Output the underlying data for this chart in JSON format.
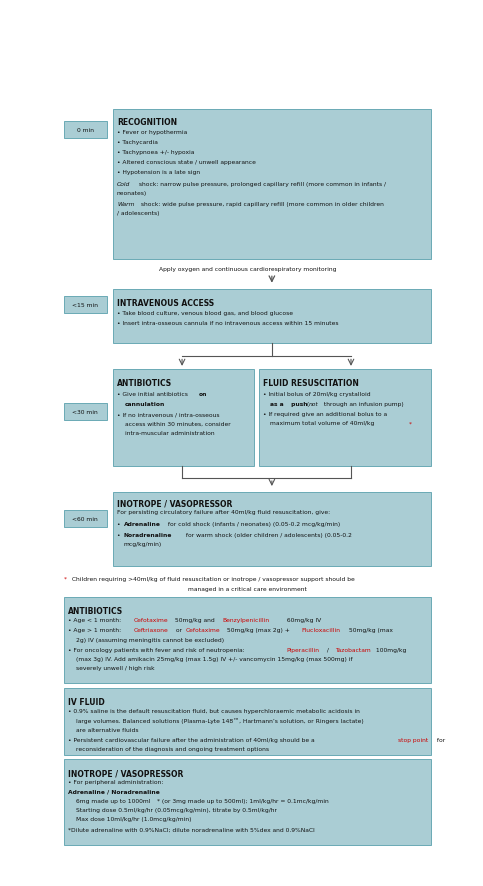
{
  "bg": "#ffffff",
  "box_fc": "#aacdd4",
  "box_ec": "#6aaab5",
  "txt": "#111111",
  "red": "#cc0000",
  "fig_w": 4.83,
  "fig_h": 8.87
}
